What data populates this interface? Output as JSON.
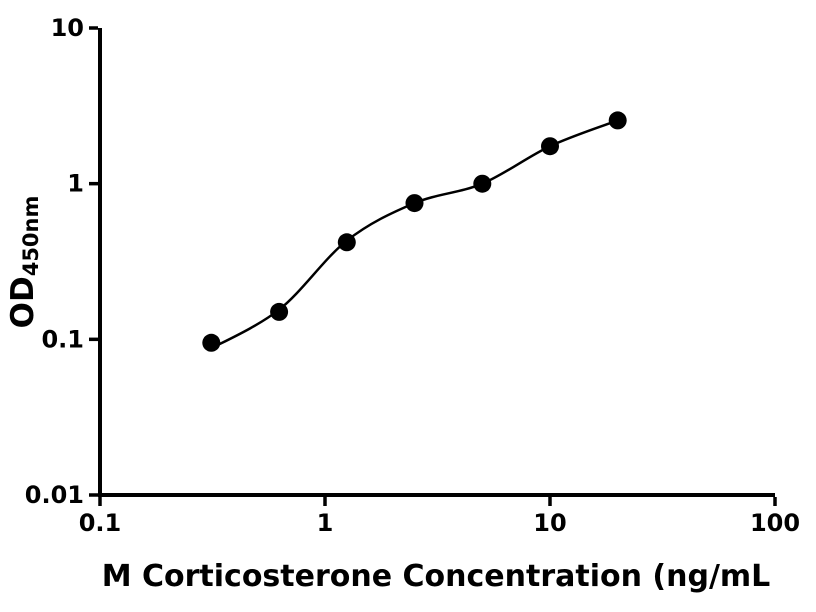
{
  "chart_data": {
    "type": "scatter",
    "title": "",
    "xlabel": "M Corticosterone Concentration (ng/mL",
    "ylabel": "OD450nm",
    "ylabel_main": "OD",
    "ylabel_sub": "450nm",
    "x_scale": "log",
    "y_scale": "log",
    "xlim": [
      0.1,
      100
    ],
    "ylim": [
      0.01,
      10
    ],
    "x_ticks": [
      0.1,
      1,
      10,
      100
    ],
    "y_ticks": [
      0.01,
      0.1,
      1,
      10
    ],
    "grid": false,
    "legend": false,
    "axis_color": "#000000",
    "background_color": "#ffffff",
    "series": [
      {
        "name": "corticosterone-standard-points",
        "marker": "filled-circle",
        "marker_color": "#000000",
        "x": [
          0.3125,
          0.625,
          1.25,
          2.5,
          5,
          10,
          20
        ],
        "y": [
          0.095,
          0.15,
          0.42,
          0.75,
          1.0,
          1.74,
          2.55
        ]
      }
    ],
    "fit_curve": {
      "name": "four-parameter-fit-line",
      "color": "#000000",
      "x": [
        0.3,
        0.625,
        1.25,
        2.5,
        5,
        10,
        20
      ],
      "y": [
        0.085,
        0.155,
        0.43,
        0.75,
        1.0,
        1.74,
        2.55
      ]
    }
  }
}
